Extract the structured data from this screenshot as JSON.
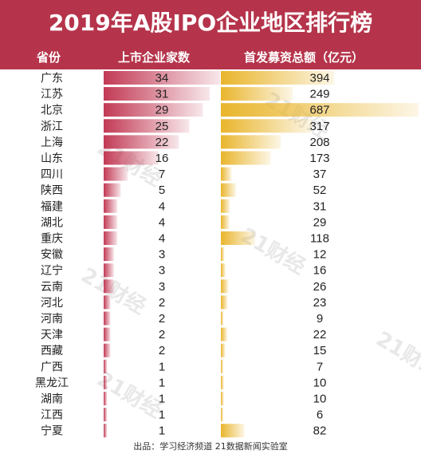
{
  "title": "2019年A股IPO企业地区排行榜",
  "headers": {
    "province": "省份",
    "companies": "上市企业家数",
    "funds": "首发募资总额（亿元）"
  },
  "source": "出品：学习经济频道  21数据新闻实验室",
  "watermark": "21财经",
  "colors": {
    "header_bg": "#b5344b",
    "companies_bar": "#c23a55",
    "funds_bar": "#e9b52c"
  },
  "chart_data": {
    "type": "bar",
    "categories": [
      "广东",
      "江苏",
      "北京",
      "浙江",
      "上海",
      "山东",
      "四川",
      "陕西",
      "福建",
      "湖北",
      "重庆",
      "安徽",
      "辽宁",
      "云南",
      "河北",
      "河南",
      "天津",
      "西藏",
      "广西",
      "黑龙江",
      "湖南",
      "江西",
      "宁夏"
    ],
    "series": [
      {
        "name": "上市企业家数",
        "values": [
          34,
          31,
          29,
          25,
          22,
          16,
          7,
          5,
          4,
          4,
          4,
          3,
          3,
          3,
          2,
          2,
          2,
          2,
          1,
          1,
          1,
          1,
          1
        ]
      },
      {
        "name": "首发募资总额（亿元）",
        "values": [
          394,
          249,
          687,
          317,
          208,
          173,
          37,
          52,
          31,
          29,
          118,
          12,
          16,
          26,
          23,
          9,
          22,
          15,
          7,
          10,
          10,
          6,
          82
        ]
      }
    ],
    "title": "2019年A股IPO企业地区排行榜"
  }
}
